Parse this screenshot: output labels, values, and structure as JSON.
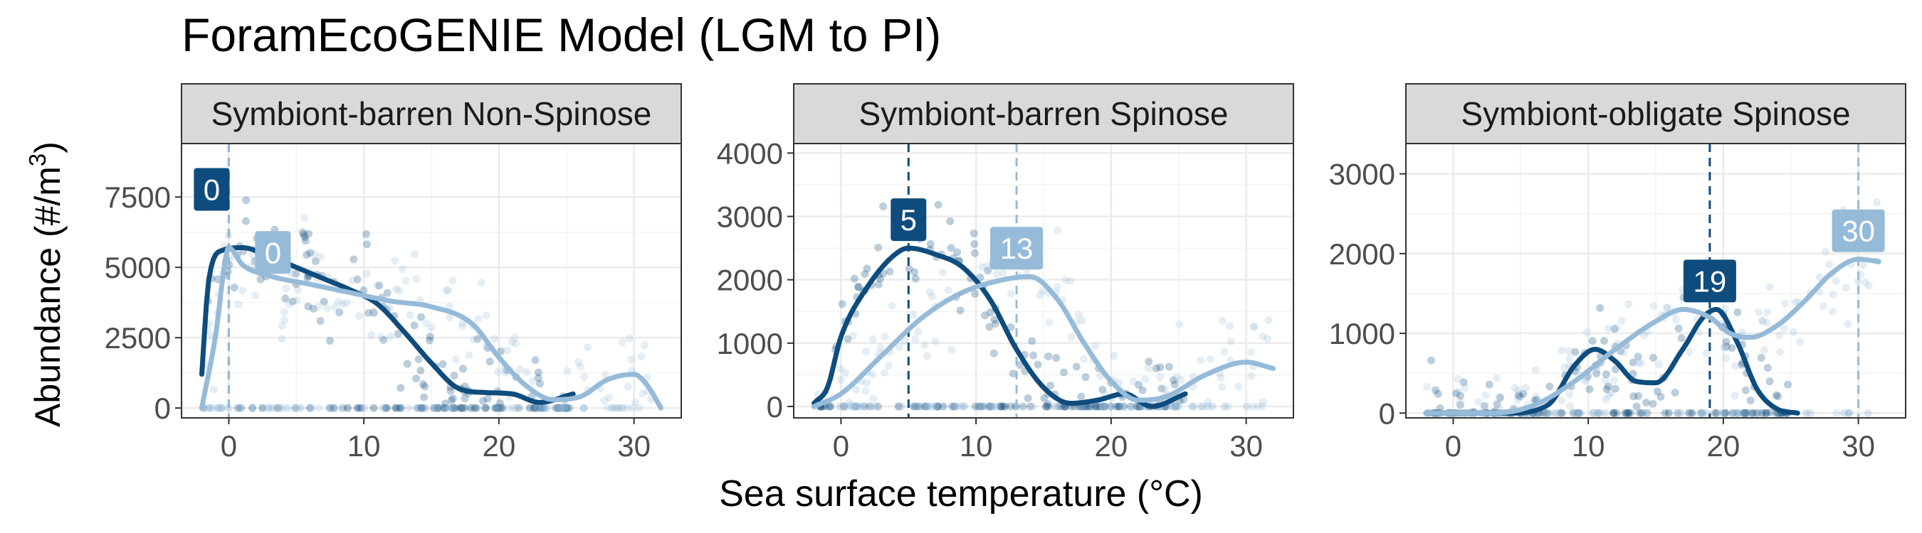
{
  "title": "ForamEcoGENIE Model  (LGM to PI)",
  "ylabel_main": "Abundance (#/m",
  "ylabel_sup": "3",
  "ylabel_close": ")",
  "xlabel": "Sea surface temperature (°C)",
  "colors": {
    "lgm": "#0e4c7d",
    "pi": "#96bbd9",
    "strip_bg": "#d9d9d9",
    "grid": "#ebebeb",
    "axis_text": "#4d4d4d",
    "label_text": "#ffffff"
  },
  "chart_data": [
    {
      "type": "scatter",
      "panel": "Symbiont-barren Non-Spinose",
      "xlim": [
        -3.5,
        33.5
      ],
      "ylim": [
        -350,
        9400
      ],
      "xticks": [
        0,
        10,
        20,
        30
      ],
      "yticks": [
        0,
        2500,
        5000,
        7500
      ],
      "ytick_labels": [
        "0",
        "2500",
        "5000",
        "7500"
      ],
      "grid": true,
      "series": [
        {
          "key": "lgm",
          "optimum": 0,
          "optimum_label": "0",
          "smooth": [
            [
              -2,
              1200
            ],
            [
              -1.5,
              4500
            ],
            [
              -0.5,
              5600
            ],
            [
              1,
              5700
            ],
            [
              3,
              5400
            ],
            [
              5,
              5000
            ],
            [
              7,
              4600
            ],
            [
              9,
              4200
            ],
            [
              11,
              3700
            ],
            [
              13,
              2700
            ],
            [
              15,
              1600
            ],
            [
              17,
              700
            ],
            [
              19,
              550
            ],
            [
              21,
              500
            ],
            [
              23,
              200
            ],
            [
              25.5,
              500
            ]
          ]
        },
        {
          "key": "pi",
          "optimum": 0,
          "optimum_label": "0",
          "smooth": [
            [
              -2,
              0
            ],
            [
              -1,
              2500
            ],
            [
              0,
              5700
            ],
            [
              1,
              5100
            ],
            [
              3,
              4700
            ],
            [
              6,
              4400
            ],
            [
              9,
              4100
            ],
            [
              12,
              3800
            ],
            [
              15,
              3600
            ],
            [
              18,
              3000
            ],
            [
              20,
              1800
            ],
            [
              22,
              800
            ],
            [
              24,
              300
            ],
            [
              26,
              400
            ],
            [
              28,
              1000
            ],
            [
              30,
              1200
            ],
            [
              31,
              800
            ],
            [
              32,
              0
            ]
          ]
        }
      ]
    },
    {
      "type": "scatter",
      "panel": "Symbiont-barren Spinose",
      "xlim": [
        -3.5,
        33.5
      ],
      "ylim": [
        -180,
        4150
      ],
      "xticks": [
        0,
        10,
        20,
        30
      ],
      "yticks": [
        0,
        1000,
        2000,
        3000,
        4000
      ],
      "ytick_labels": [
        "0",
        "1000",
        "2000",
        "3000",
        "4000"
      ],
      "grid": true,
      "series": [
        {
          "key": "lgm",
          "optimum": 5,
          "optimum_label": "5",
          "smooth": [
            [
              -2,
              50
            ],
            [
              -1,
              300
            ],
            [
              0,
              1100
            ],
            [
              2,
              1900
            ],
            [
              4,
              2400
            ],
            [
              5,
              2500
            ],
            [
              7,
              2400
            ],
            [
              9,
              2200
            ],
            [
              11,
              1700
            ],
            [
              13,
              900
            ],
            [
              15,
              300
            ],
            [
              17,
              50
            ],
            [
              19,
              100
            ],
            [
              21,
              200
            ],
            [
              23,
              0
            ],
            [
              25.5,
              200
            ]
          ]
        },
        {
          "key": "pi",
          "optimum": 13,
          "optimum_label": "13",
          "smooth": [
            [
              -2,
              0
            ],
            [
              0,
              200
            ],
            [
              3,
              800
            ],
            [
              6,
              1400
            ],
            [
              9,
              1800
            ],
            [
              12,
              2000
            ],
            [
              14,
              2050
            ],
            [
              16,
              1700
            ],
            [
              18,
              1000
            ],
            [
              20,
              400
            ],
            [
              22,
              100
            ],
            [
              24,
              150
            ],
            [
              27,
              500
            ],
            [
              30,
              700
            ],
            [
              32,
              600
            ]
          ]
        }
      ]
    },
    {
      "type": "scatter",
      "panel": "Symbiont-obligate Spinose",
      "xlim": [
        -3.5,
        33.5
      ],
      "ylim": [
        -60,
        3380
      ],
      "xticks": [
        0,
        10,
        20,
        30
      ],
      "yticks": [
        0,
        1000,
        2000,
        3000
      ],
      "ytick_labels": [
        "0",
        "1000",
        "2000",
        "3000"
      ],
      "grid": true,
      "series": [
        {
          "key": "lgm",
          "optimum": 19,
          "optimum_label": "19",
          "smooth": [
            [
              -2,
              0
            ],
            [
              4,
              0
            ],
            [
              7,
              100
            ],
            [
              9,
              600
            ],
            [
              10.5,
              800
            ],
            [
              12,
              650
            ],
            [
              13.5,
              400
            ],
            [
              15,
              380
            ],
            [
              17,
              800
            ],
            [
              18.5,
              1200
            ],
            [
              19.5,
              1300
            ],
            [
              21,
              900
            ],
            [
              22.5,
              300
            ],
            [
              24,
              50
            ],
            [
              25.5,
              0
            ]
          ]
        },
        {
          "key": "pi",
          "optimum": 30,
          "optimum_label": "30",
          "smooth": [
            [
              -2,
              0
            ],
            [
              3,
              0
            ],
            [
              6,
              100
            ],
            [
              9,
              400
            ],
            [
              12,
              800
            ],
            [
              15,
              1150
            ],
            [
              17,
              1300
            ],
            [
              19,
              1200
            ],
            [
              20.5,
              1000
            ],
            [
              22,
              950
            ],
            [
              24,
              1100
            ],
            [
              26,
              1400
            ],
            [
              28,
              1750
            ],
            [
              30,
              1930
            ],
            [
              31.5,
              1900
            ]
          ]
        }
      ]
    }
  ]
}
